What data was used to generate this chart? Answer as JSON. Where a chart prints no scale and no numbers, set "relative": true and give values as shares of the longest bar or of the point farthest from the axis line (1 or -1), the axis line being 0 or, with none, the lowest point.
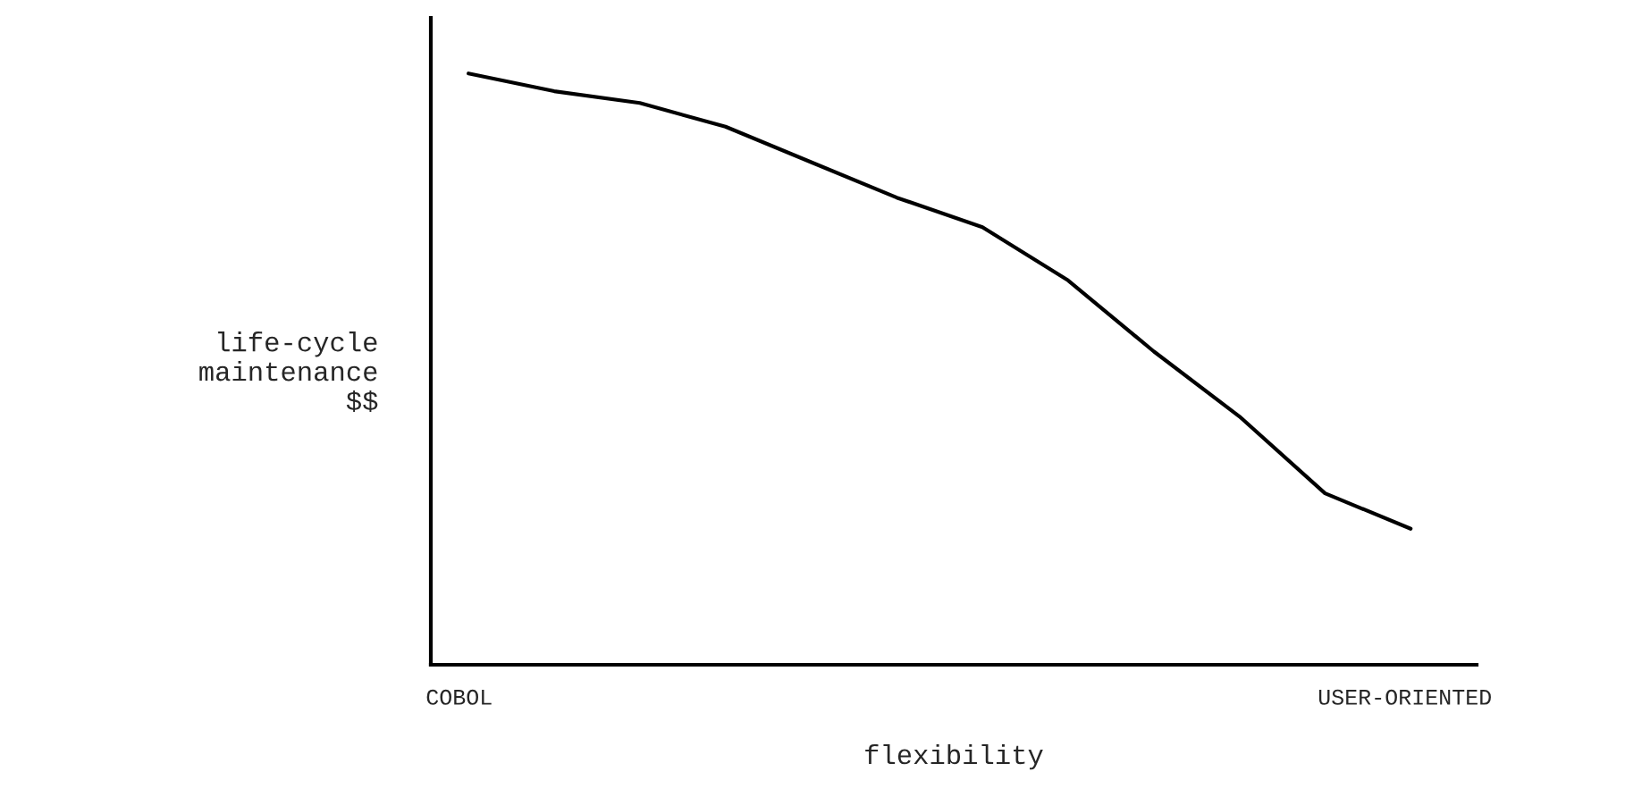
{
  "chart_data": {
    "type": "line",
    "relative": true,
    "xlabel": "flexibility",
    "ylabel": "life-cycle\nmaintenance\n$$",
    "categories": [
      "COBOL",
      null,
      null,
      null,
      null,
      null,
      null,
      null,
      null,
      null,
      null,
      "USER-ORIENTED"
    ],
    "series": [
      {
        "color": "#000000",
        "values": [
          1.0,
          0.97,
          0.95,
          0.91,
          0.85,
          0.79,
          0.74,
          0.65,
          0.53,
          0.42,
          0.29,
          0.23
        ]
      }
    ],
    "marker": "none"
  }
}
